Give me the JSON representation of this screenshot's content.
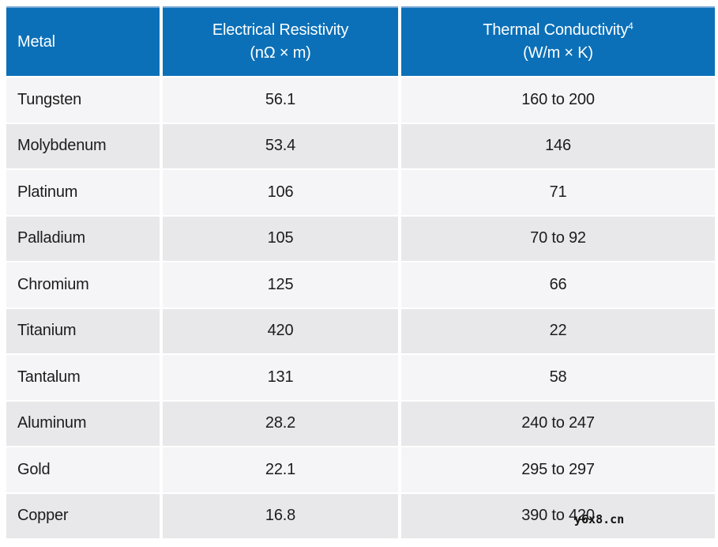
{
  "table": {
    "header": {
      "background": "#0b70b8",
      "top_border_color": "#7aa9d6",
      "text_color": "#ffffff",
      "columns": [
        {
          "label": "Metal",
          "unit": "",
          "superscript": ""
        },
        {
          "label": "Electrical Resistivity",
          "unit": "(nΩ × m)",
          "superscript": ""
        },
        {
          "label": "Thermal Conductivity",
          "unit": "(W/m × K)",
          "superscript": "4"
        }
      ]
    },
    "row_colors": {
      "odd": "#f5f5f7",
      "even": "#e8e8ea"
    },
    "rows": [
      {
        "metal": "Tungsten",
        "resistivity": "56.1",
        "conductivity": "160 to 200"
      },
      {
        "metal": "Molybdenum",
        "resistivity": "53.4",
        "conductivity": "146"
      },
      {
        "metal": "Platinum",
        "resistivity": "106",
        "conductivity": "71"
      },
      {
        "metal": "Palladium",
        "resistivity": "105",
        "conductivity": "70 to 92"
      },
      {
        "metal": "Chromium",
        "resistivity": "125",
        "conductivity": "66"
      },
      {
        "metal": "Titanium",
        "resistivity": "420",
        "conductivity": "22"
      },
      {
        "metal": "Tantalum",
        "resistivity": "131",
        "conductivity": "58"
      },
      {
        "metal": "Aluminum",
        "resistivity": "28.2",
        "conductivity": "240 to 247"
      },
      {
        "metal": "Gold",
        "resistivity": "22.1",
        "conductivity": "295 to 297"
      },
      {
        "metal": "Copper",
        "resistivity": "16.8",
        "conductivity": "390 to 420"
      }
    ]
  },
  "watermark": "y6x8.cn",
  "chart_data": {
    "type": "table",
    "title": "",
    "columns": [
      "Metal",
      "Electrical Resistivity (nΩ × m)",
      "Thermal Conductivity⁴ (W/m × K)"
    ],
    "rows": [
      [
        "Tungsten",
        56.1,
        "160 to 200"
      ],
      [
        "Molybdenum",
        53.4,
        "146"
      ],
      [
        "Platinum",
        106,
        "71"
      ],
      [
        "Palladium",
        105,
        "70 to 92"
      ],
      [
        "Chromium",
        125,
        "66"
      ],
      [
        "Titanium",
        420,
        "22"
      ],
      [
        "Tantalum",
        131,
        "58"
      ],
      [
        "Aluminum",
        28.2,
        "240 to 247"
      ],
      [
        "Gold",
        22.1,
        "295 to 297"
      ],
      [
        "Copper",
        16.8,
        "390 to 420"
      ]
    ]
  }
}
